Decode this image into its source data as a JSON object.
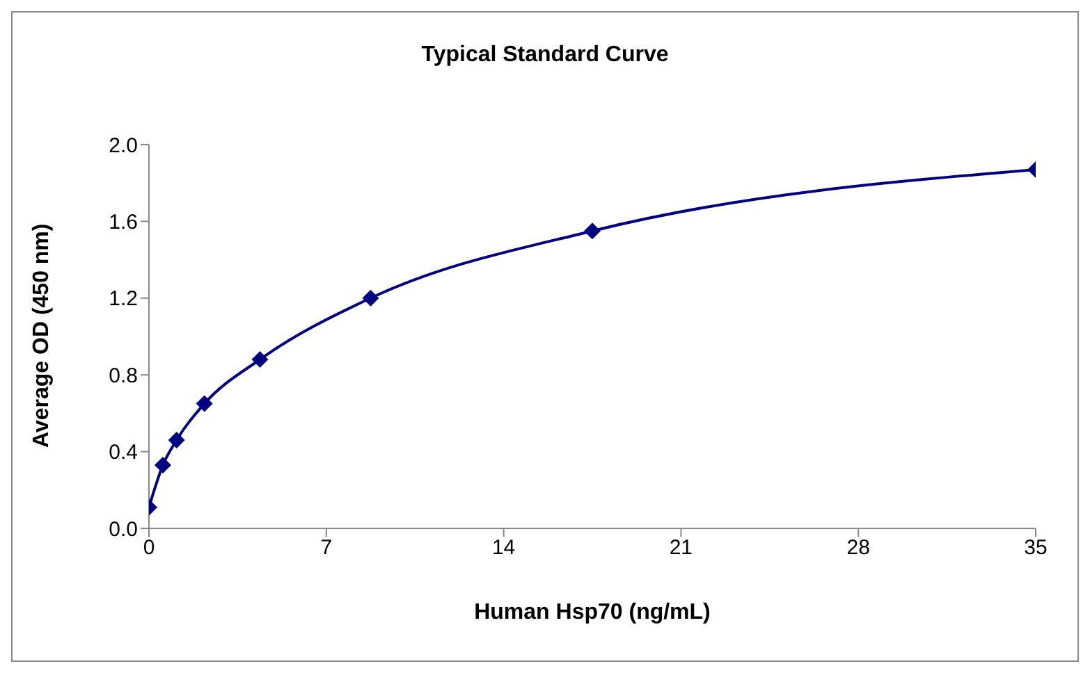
{
  "chart_data": {
    "type": "line",
    "title": "Typical Standard Curve",
    "xlabel": "Human Hsp70 (ng/mL)",
    "ylabel": "Average OD (450 nm)",
    "x": [
      0,
      0.55,
      1.09,
      2.19,
      4.38,
      8.75,
      17.5,
      35
    ],
    "series": [
      {
        "color": "#000080",
        "values": [
          0.11,
          0.33,
          0.46,
          0.65,
          0.88,
          1.2,
          1.55,
          1.87
        ]
      }
    ],
    "xlim": [
      0,
      35
    ],
    "xticks": [
      0,
      7,
      14,
      21,
      28,
      35
    ],
    "ylim": [
      0,
      2
    ],
    "yticks": [
      {
        "value": 0,
        "label": "0.0"
      },
      {
        "value": 0.4,
        "label": "0.4"
      },
      {
        "value": 0.8,
        "label": "0.8"
      },
      {
        "value": 1.2,
        "label": "1.2"
      },
      {
        "value": 1.6,
        "label": "1.6"
      },
      {
        "value": 2,
        "label": "2.0"
      }
    ],
    "grid": false,
    "legend": false,
    "marker": "diamond",
    "line_style": "solid"
  }
}
